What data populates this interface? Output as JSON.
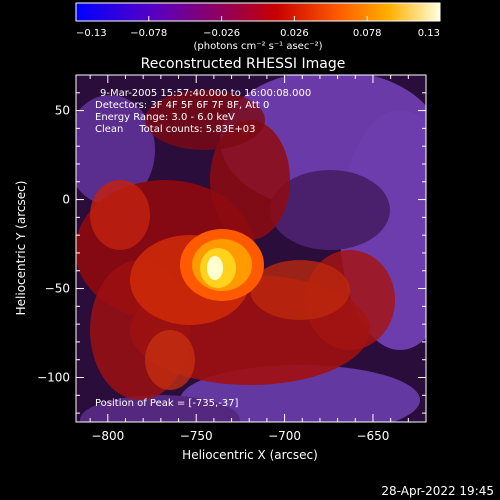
{
  "chart_data": {
    "type": "heatmap",
    "title": "Reconstructed RHESSI Image",
    "xlabel": "Heliocentric X (arcsec)",
    "ylabel": "Heliocentric Y (arcsec)",
    "xlim": [
      -818,
      -620
    ],
    "ylim": [
      -125,
      70
    ],
    "xticks": [
      -800,
      -750,
      -700,
      -650
    ],
    "yticks": [
      50,
      0,
      -50,
      -100
    ],
    "colorbar": {
      "range": [
        -0.13,
        0.13
      ],
      "ticks": [
        "-0.13",
        "-0.078",
        "-0.026",
        "0.026",
        "0.078",
        "0.13"
      ],
      "unit_label": "(photons cm⁻² s⁻¹ asec⁻²)"
    },
    "peak": [
      -735,
      -37
    ],
    "annotations": [
      "9-Mar-2005 15:57:40.000 to 16:00:08.000",
      "Detectors: 3F 4F 5F 6F 7F 8F, Att 0",
      "Energy Range: 3.0 - 6.0 keV",
      "Clean     Total counts: 5.83E+03"
    ],
    "peak_label": "Position of Peak = [-735,-37]"
  },
  "footer": {
    "timestamp": "28-Apr-2022 19:45"
  },
  "colors": {
    "background": "#000000",
    "foreground": "#ffffff"
  }
}
